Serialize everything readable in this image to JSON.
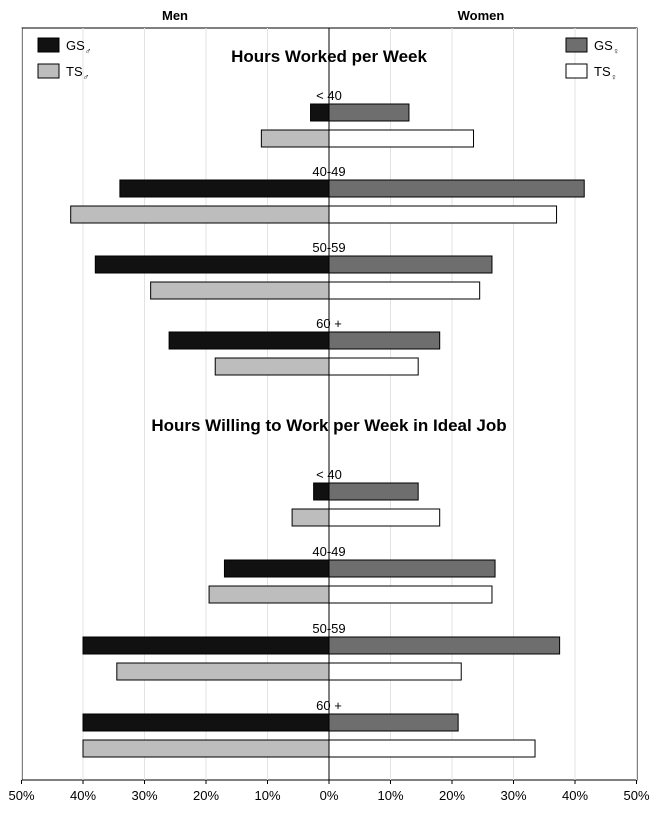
{
  "chart_data": {
    "type": "bar",
    "orientation": "horizontal-diverging",
    "side_labels": {
      "left": "Men",
      "right": "Women"
    },
    "x_ticks": [
      "50%",
      "40%",
      "30%",
      "20%",
      "10%",
      "0%",
      "10%",
      "20%",
      "30%",
      "40%",
      "50%"
    ],
    "xlim": [
      -50,
      50
    ],
    "grid": true,
    "legend": {
      "left": [
        {
          "label": "GS",
          "symbol": "♂",
          "color": "#111111"
        },
        {
          "label": "TS",
          "symbol": "♂",
          "color": "#bdbdbd"
        }
      ],
      "right": [
        {
          "label": "GS",
          "symbol": "♀",
          "color": "#6e6e6e"
        },
        {
          "label": "TS",
          "symbol": "♀",
          "color": "#ffffff"
        }
      ]
    },
    "panels": [
      {
        "title": "Hours Worked per Week",
        "categories": [
          "< 40",
          "40-49",
          "50-59",
          "60 +"
        ],
        "series": [
          {
            "name": "GS♂",
            "side": "left",
            "color": "#111111",
            "values": [
              3,
              34,
              38,
              26
            ]
          },
          {
            "name": "TS♂",
            "side": "left",
            "color": "#bdbdbd",
            "values": [
              11,
              42,
              29,
              18.5
            ]
          },
          {
            "name": "GS♀",
            "side": "right",
            "color": "#6e6e6e",
            "values": [
              13,
              41.5,
              26.5,
              18
            ]
          },
          {
            "name": "TS♀",
            "side": "right",
            "color": "#ffffff",
            "values": [
              23.5,
              37,
              24.5,
              14.5
            ]
          }
        ]
      },
      {
        "title": "Hours Willing to Work per Week in Ideal Job",
        "categories": [
          "< 40",
          "40-49",
          "50-59",
          "60 +"
        ],
        "series": [
          {
            "name": "GS♂",
            "side": "left",
            "color": "#111111",
            "values": [
              2.5,
              17,
              40,
              40
            ]
          },
          {
            "name": "TS♂",
            "side": "left",
            "color": "#bdbdbd",
            "values": [
              6,
              19.5,
              34.5,
              40
            ]
          },
          {
            "name": "GS♀",
            "side": "right",
            "color": "#6e6e6e",
            "values": [
              14.5,
              27,
              37.5,
              21
            ]
          },
          {
            "name": "TS♀",
            "side": "right",
            "color": "#ffffff",
            "values": [
              18,
              26.5,
              21.5,
              33.5
            ]
          }
        ]
      }
    ]
  }
}
